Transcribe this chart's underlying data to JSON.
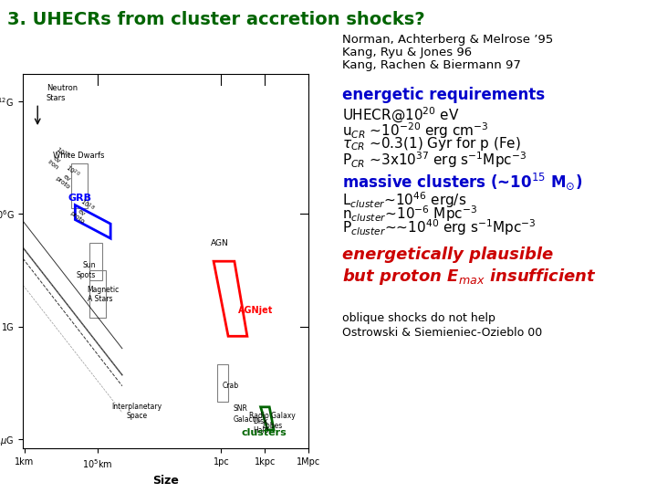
{
  "title": "3. UHECRs from cluster accretion shocks?",
  "title_color": "#006400",
  "title_fontsize": 14,
  "background_color": "#ffffff",
  "refs_line1": "Norman, Achterberg & Melrose ’95",
  "refs_line2": "Kang, Ryu & Jones 96",
  "refs_line3": "Kang, Rachen & Biermann 97",
  "refs_fontsize": 9.5,
  "section1_heading": "energetic requirements",
  "section1_color": "#0000cc",
  "section1_fontsize": 12,
  "section1_lines": [
    "UHECR@10$^{20}$ eV",
    "u$_{CR}$ ~10$^{-20}$ erg cm$^{-3}$",
    "$\\tau_{CR}$ ~0.3(1) Gyr for p (Fe)",
    "P$_{CR}$ ~3x10$^{37}$ erg s$^{-1}$Mpc$^{-3}$"
  ],
  "section2_heading": "massive clusters (~10$^{15}$ M$_{\\odot}$)",
  "section2_color": "#0000cc",
  "section2_fontsize": 12,
  "section2_lines": [
    "L$_{cluster}$~10$^{46}$ erg/s",
    "n$_{cluster}$~10$^{-6}$ Mpc$^{-3}$",
    "P$_{cluster}$~~10$^{40}$ erg s$^{-1}$Mpc$^{-3}$"
  ],
  "section3_line1": "energetically plausible",
  "section3_line2": "but proton E$_{max}$ insufficient",
  "section3_color": "#cc0000",
  "section3_fontsize": 13,
  "footer_line1": "oblique shocks do not help",
  "footer_line2": "Ostrowski & Siemieniec-Ozieblo 00",
  "footer_fontsize": 9,
  "body_fontsize": 11
}
